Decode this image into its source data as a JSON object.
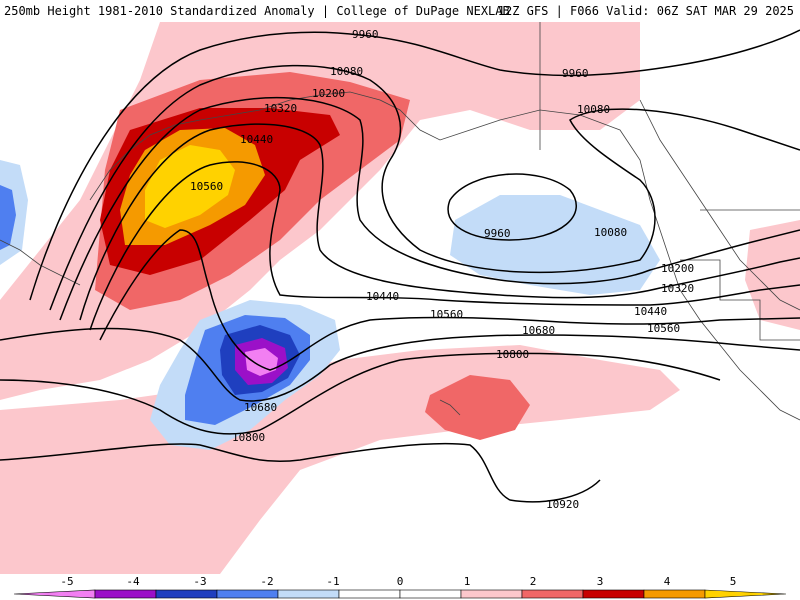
{
  "header": {
    "title_left": "250mb Height 1981-2010 Standardized Anomaly | College of DuPage NEXLAB",
    "title_right": "12Z GFS | F066 Valid: 06Z SAT MAR 29 2025"
  },
  "map": {
    "contour_labels": [
      "9960",
      "9960",
      "9960",
      "10080",
      "10080",
      "10080",
      "10200",
      "10200",
      "10320",
      "10320",
      "10440",
      "10440",
      "10440",
      "10560",
      "10560",
      "10560",
      "10680",
      "10680",
      "10800",
      "10800",
      "10920"
    ]
  },
  "colorbar": {
    "ticks": [
      "-5",
      "-4",
      "-3",
      "-2",
      "-1",
      "0",
      "1",
      "2",
      "3",
      "4",
      "5"
    ],
    "colors": [
      "#f27ff2",
      "#9b10c8",
      "#1f3fbf",
      "#4f7ff0",
      "#c3dcf8",
      "#ffffff",
      "#ffffff",
      "#fcc7cc",
      "#f06767",
      "#c80000",
      "#f59a00",
      "#ffd200"
    ]
  }
}
